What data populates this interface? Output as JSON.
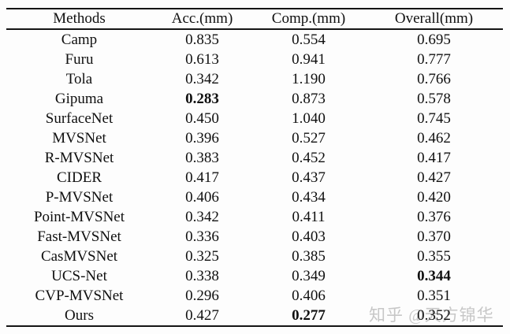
{
  "table": {
    "columns": [
      "Methods",
      "Acc.(mm)",
      "Comp.(mm)",
      "Overall(mm)"
    ],
    "rows": [
      {
        "method": "Camp",
        "acc": "0.835",
        "comp": "0.554",
        "overall": "0.695",
        "bold": ""
      },
      {
        "method": "Furu",
        "acc": "0.613",
        "comp": "0.941",
        "overall": "0.777",
        "bold": ""
      },
      {
        "method": "Tola",
        "acc": "0.342",
        "comp": "1.190",
        "overall": "0.766",
        "bold": ""
      },
      {
        "method": "Gipuma",
        "acc": "0.283",
        "comp": "0.873",
        "overall": "0.578",
        "bold": "acc"
      },
      {
        "method": "SurfaceNet",
        "acc": "0.450",
        "comp": "1.040",
        "overall": "0.745",
        "bold": ""
      },
      {
        "method": "MVSNet",
        "acc": "0.396",
        "comp": "0.527",
        "overall": "0.462",
        "bold": ""
      },
      {
        "method": "R-MVSNet",
        "acc": "0.383",
        "comp": "0.452",
        "overall": "0.417",
        "bold": ""
      },
      {
        "method": "CIDER",
        "acc": "0.417",
        "comp": "0.437",
        "overall": "0.427",
        "bold": ""
      },
      {
        "method": "P-MVSNet",
        "acc": "0.406",
        "comp": "0.434",
        "overall": "0.420",
        "bold": ""
      },
      {
        "method": "Point-MVSNet",
        "acc": "0.342",
        "comp": "0.411",
        "overall": "0.376",
        "bold": ""
      },
      {
        "method": "Fast-MVSNet",
        "acc": "0.336",
        "comp": "0.403",
        "overall": "0.370",
        "bold": ""
      },
      {
        "method": "CasMVSNet",
        "acc": "0.325",
        "comp": "0.385",
        "overall": "0.355",
        "bold": ""
      },
      {
        "method": "UCS-Net",
        "acc": "0.338",
        "comp": "0.349",
        "overall": "0.344",
        "bold": "overall"
      },
      {
        "method": "CVP-MVSNet",
        "acc": "0.296",
        "comp": "0.406",
        "overall": "0.351",
        "bold": ""
      },
      {
        "method": "Ours",
        "acc": "0.427",
        "comp": "0.277",
        "overall": "0.352",
        "bold": "comp"
      }
    ]
  },
  "watermark": {
    "text": "知乎 @天方锦华"
  },
  "colors": {
    "text": "#101010",
    "rule": "#151515",
    "watermark": "#c7c7c7",
    "background": "#fdfdfd"
  }
}
